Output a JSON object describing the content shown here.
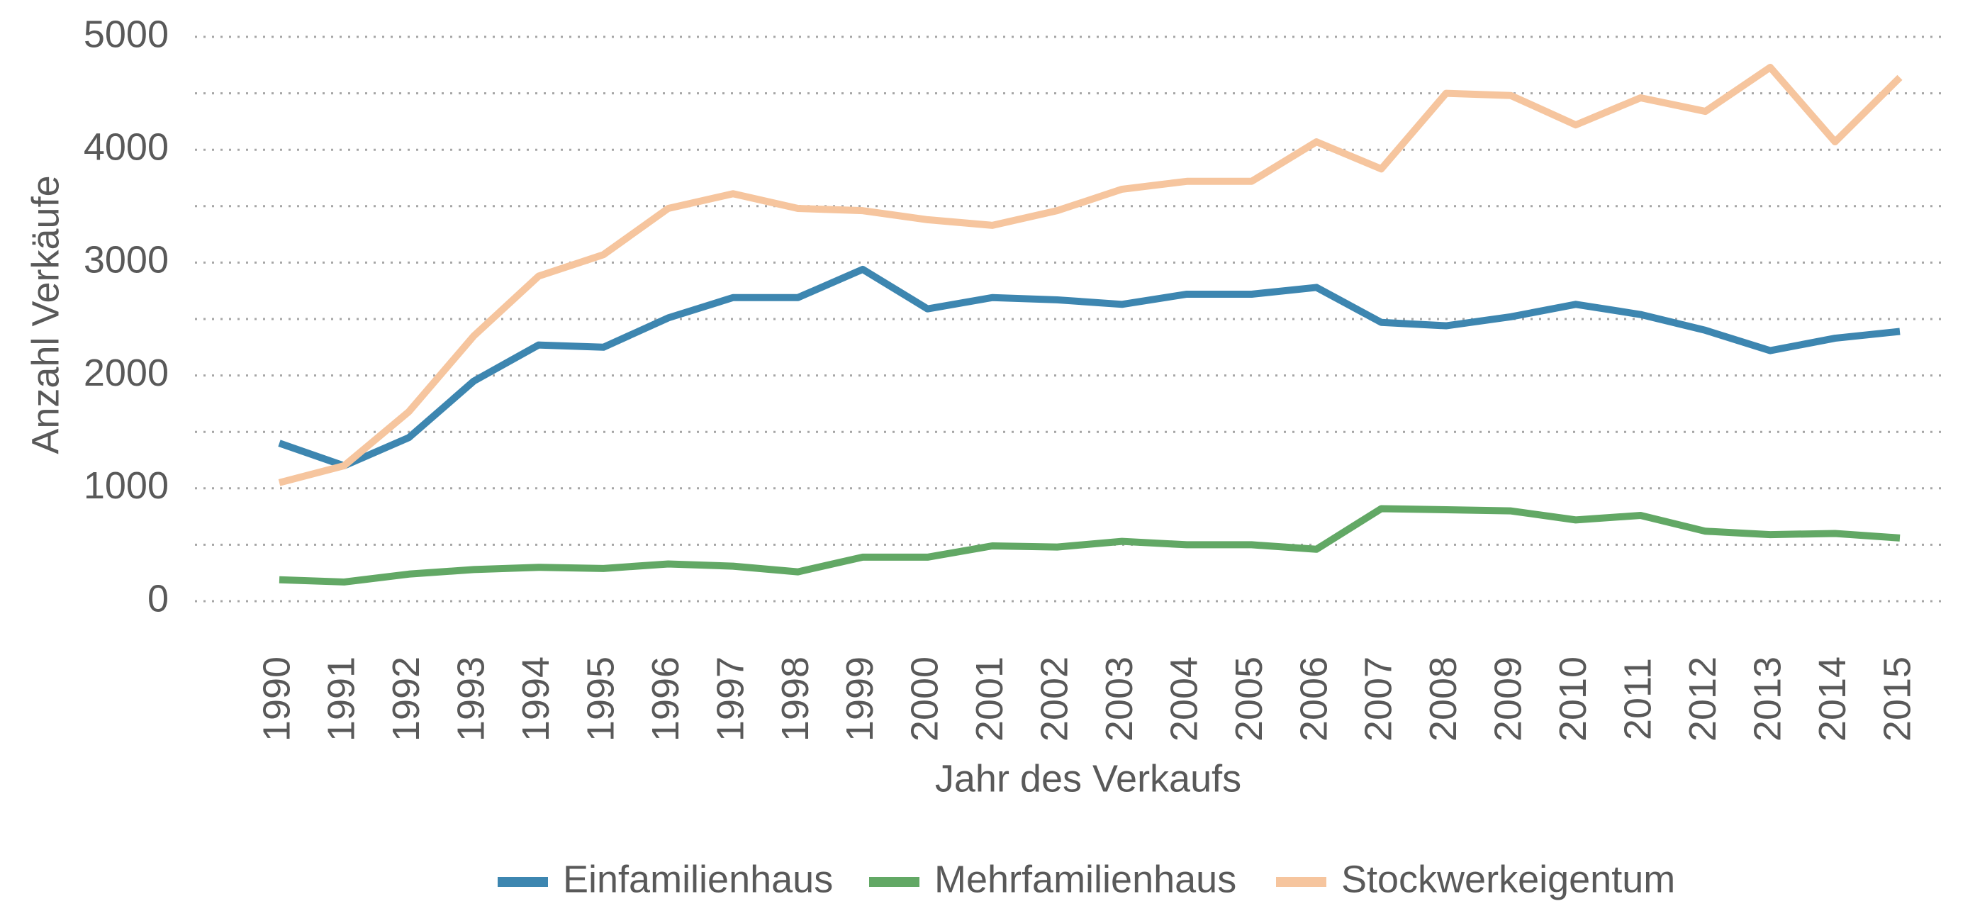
{
  "chart_data": {
    "type": "line",
    "x_label": "Jahr des Verkaufs",
    "y_label": "Anzahl Verkäufe",
    "categories": [
      "1990",
      "1991",
      "1992",
      "1993",
      "1994",
      "1995",
      "1996",
      "1997",
      "1998",
      "1999",
      "2000",
      "2001",
      "2002",
      "2003",
      "2004",
      "2005",
      "2006",
      "2007",
      "2008",
      "2009",
      "2010",
      "2011",
      "2012",
      "2013",
      "2014",
      "2015"
    ],
    "series": [
      {
        "name": "Einfamilienhaus",
        "color": "#3d86b0",
        "values": [
          1400,
          1200,
          1450,
          1950,
          2270,
          2250,
          2510,
          2690,
          2690,
          2940,
          2590,
          2690,
          2670,
          2630,
          2720,
          2720,
          2780,
          2470,
          2440,
          2520,
          2630,
          2540,
          2400,
          2220,
          2330,
          2390
        ]
      },
      {
        "name": "Mehrfamilienhaus",
        "color": "#62a865",
        "values": [
          190,
          170,
          240,
          280,
          300,
          290,
          330,
          310,
          260,
          390,
          390,
          490,
          480,
          530,
          500,
          500,
          460,
          820,
          810,
          800,
          720,
          760,
          620,
          590,
          600,
          560
        ]
      },
      {
        "name": "Stockwerkeigentum",
        "color": "#f6c59e",
        "values": [
          1050,
          1200,
          1680,
          2350,
          2880,
          3070,
          3480,
          3610,
          3480,
          3460,
          3380,
          3330,
          3460,
          3650,
          3720,
          3720,
          4070,
          3830,
          4500,
          4480,
          4220,
          4460,
          4340,
          4730,
          4070,
          4640
        ]
      }
    ],
    "ylim": [
      0,
      5000
    ],
    "yticks": [
      0,
      1000,
      2000,
      3000,
      4000,
      5000
    ],
    "minor_grid": [
      500,
      1500,
      2500,
      3500,
      4500
    ],
    "grid": true,
    "legend": "bottom"
  }
}
